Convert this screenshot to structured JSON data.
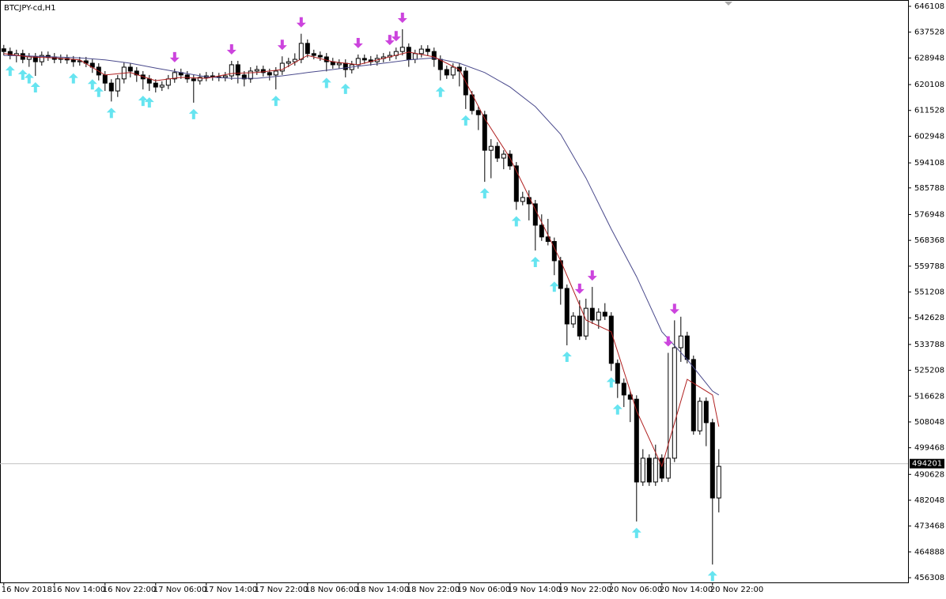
{
  "chart_data": {
    "type": "candlestick",
    "title": "BTCJPY-cd,H1",
    "xlim": [
      -0.6,
      142.9
    ],
    "ylim": [
      454746,
      648208
    ],
    "yticks": [
      646108,
      637528,
      628948,
      620108,
      611528,
      602948,
      594108,
      585788,
      576948,
      568368,
      559788,
      551208,
      542628,
      533788,
      525208,
      516628,
      508048,
      499468,
      490628,
      482048,
      473468,
      464888,
      456308
    ],
    "xticks": [
      {
        "value": 0,
        "label": "16 Nov 2018"
      },
      {
        "value": 8,
        "label": "16 Nov 14:00"
      },
      {
        "value": 16,
        "label": "16 Nov 22:00"
      },
      {
        "value": 24,
        "label": "17 Nov 06:00"
      },
      {
        "value": 32,
        "label": "17 Nov 14:00"
      },
      {
        "value": 40,
        "label": "17 Nov 22:00"
      },
      {
        "value": 48,
        "label": "18 Nov 06:00"
      },
      {
        "value": 56,
        "label": "18 Nov 14:00"
      },
      {
        "value": 64,
        "label": "18 Nov 22:00"
      },
      {
        "value": 72,
        "label": "19 Nov 06:00"
      },
      {
        "value": 80,
        "label": "19 Nov 14:00"
      },
      {
        "value": 88,
        "label": "19 Nov 22:00"
      },
      {
        "value": 96,
        "label": "20 Nov 06:00"
      },
      {
        "value": 104,
        "label": "20 Nov 14:00"
      },
      {
        "value": 112,
        "label": "20 Nov 22:00"
      }
    ],
    "bull_color": "#ffffff",
    "bear_color": "#000000",
    "candles": {
      "open": [
        632000,
        631100,
        629800,
        630400,
        628500,
        629300,
        627700,
        629800,
        629300,
        628500,
        628800,
        628300,
        627700,
        628000,
        627200,
        625900,
        623300,
        620600,
        618000,
        622000,
        625900,
        624600,
        623300,
        622000,
        620600,
        619300,
        619900,
        622000,
        624100,
        623300,
        622000,
        621400,
        622500,
        623000,
        622700,
        622500,
        623000,
        626700,
        623300,
        622000,
        624600,
        625100,
        624100,
        623300,
        624600,
        627200,
        627700,
        628500,
        633800,
        630400,
        629800,
        629300,
        627700,
        626700,
        627200,
        625100,
        626700,
        628800,
        628300,
        627700,
        628800,
        629300,
        629800,
        631100,
        632500,
        628500,
        630400,
        631900,
        631100,
        628500,
        625100,
        623300,
        625900,
        624600,
        616700,
        611500,
        610100,
        598300,
        599600,
        595700,
        597000,
        593100,
        581300,
        582600,
        580500,
        573400,
        569500,
        568000,
        561600,
        552400,
        540600,
        543200,
        536600,
        545800,
        541900,
        544500,
        543200,
        527500,
        520900,
        517000,
        515600,
        488100,
        496000,
        488100,
        496000,
        489400,
        496000,
        532700,
        536600,
        528800,
        505100,
        514900,
        507800,
        482800
      ],
      "high": [
        633300,
        632400,
        631700,
        631700,
        630600,
        630600,
        631100,
        631100,
        630600,
        630100,
        630100,
        629600,
        629300,
        629300,
        628500,
        627200,
        624600,
        621900,
        623300,
        627500,
        627200,
        625900,
        624600,
        623300,
        621900,
        621200,
        623300,
        625400,
        625400,
        624600,
        623300,
        623800,
        624300,
        624300,
        624000,
        624300,
        628000,
        628000,
        624600,
        625900,
        626400,
        626400,
        625400,
        625900,
        629500,
        629000,
        630500,
        637000,
        635100,
        631700,
        631100,
        630600,
        629000,
        628500,
        628500,
        628000,
        630100,
        630100,
        629600,
        630100,
        630600,
        631100,
        632400,
        638500,
        633800,
        631700,
        633200,
        633200,
        632400,
        629800,
        626400,
        627200,
        627200,
        625900,
        618000,
        612800,
        611400,
        602000,
        601000,
        598300,
        598300,
        594400,
        584500,
        585000,
        581800,
        577000,
        575500,
        569300,
        562900,
        553700,
        544500,
        548500,
        549000,
        552900,
        545800,
        547500,
        544500,
        528800,
        522500,
        518300,
        516900,
        499000,
        497300,
        500500,
        497300,
        531000,
        541800,
        543000,
        538000,
        530100,
        516200,
        516200,
        509100,
        499000
      ],
      "low": [
        629800,
        628500,
        627500,
        627200,
        626000,
        623000,
        626400,
        628000,
        627200,
        627200,
        627000,
        626000,
        626400,
        625900,
        624000,
        621500,
        618000,
        614500,
        616000,
        620500,
        622500,
        621000,
        618500,
        618000,
        617500,
        618000,
        618600,
        620700,
        622000,
        620700,
        614100,
        620100,
        621200,
        621400,
        621200,
        621200,
        621700,
        620500,
        619500,
        620700,
        623300,
        622800,
        621500,
        618500,
        623300,
        625900,
        626400,
        627200,
        629100,
        628500,
        628000,
        624500,
        625400,
        625400,
        622500,
        623800,
        625400,
        627000,
        626400,
        626400,
        627500,
        628000,
        628500,
        629800,
        626000,
        627200,
        629100,
        629800,
        626000,
        621500,
        622000,
        622000,
        619500,
        612000,
        610200,
        605000,
        587800,
        589000,
        594400,
        592000,
        591800,
        578500,
        580000,
        575000,
        565000,
        568200,
        566700,
        556800,
        547000,
        533500,
        539300,
        535300,
        535300,
        540600,
        539000,
        541900,
        525000,
        516000,
        513000,
        508000,
        475000,
        486800,
        486800,
        486800,
        488100,
        488100,
        494700,
        528000,
        527500,
        503800,
        503800,
        500000,
        460700,
        478000
      ],
      "close": [
        631100,
        629800,
        630400,
        628500,
        629300,
        627700,
        629800,
        629300,
        628500,
        628800,
        628300,
        627700,
        628000,
        627200,
        625900,
        623300,
        620600,
        618000,
        622000,
        625900,
        624600,
        623300,
        622000,
        620600,
        619300,
        619900,
        622000,
        624100,
        623300,
        622000,
        621400,
        622500,
        623000,
        622700,
        622500,
        623000,
        626700,
        623300,
        622000,
        624600,
        625100,
        624100,
        623300,
        624600,
        627200,
        627700,
        628500,
        633800,
        630400,
        629800,
        629300,
        627700,
        626700,
        627200,
        625100,
        626700,
        628800,
        628300,
        627700,
        628800,
        629300,
        629800,
        631100,
        632500,
        628500,
        630400,
        631900,
        631100,
        628500,
        625100,
        623300,
        625900,
        624600,
        616700,
        611500,
        610100,
        598300,
        599600,
        595700,
        597000,
        593100,
        581300,
        582600,
        580500,
        573400,
        569500,
        568000,
        561600,
        552400,
        540600,
        543200,
        536600,
        545800,
        541900,
        544500,
        543200,
        527500,
        520900,
        517000,
        515600,
        488100,
        496000,
        488100,
        496000,
        489400,
        496000,
        532700,
        536600,
        528800,
        505100,
        514900,
        507800,
        482800,
        493300
      ]
    },
    "moving_averages": [
      {
        "color": "#4a4a8c",
        "x": [
          0,
          4,
          8,
          12,
          16,
          20,
          24,
          28,
          32,
          36,
          40,
          44,
          48,
          52,
          56,
          60,
          64,
          68,
          72,
          76,
          80,
          84,
          88,
          92,
          96,
          100,
          104,
          108,
          112,
          113
        ],
        "values": [
          629800,
          629600,
          629300,
          629000,
          628300,
          627200,
          625600,
          624100,
          622700,
          622200,
          622200,
          623000,
          624100,
          625100,
          626200,
          627200,
          628300,
          629000,
          627200,
          624100,
          619300,
          612800,
          603600,
          589100,
          572100,
          556300,
          538000,
          528800,
          518300,
          517000
        ]
      },
      {
        "color": "#b02020",
        "x": [
          0,
          4,
          8,
          12,
          16,
          20,
          24,
          28,
          32,
          36,
          40,
          44,
          48,
          52,
          56,
          60,
          64,
          68,
          72,
          76,
          80,
          84,
          88,
          92,
          96,
          100,
          104,
          108,
          112,
          113
        ],
        "values": [
          630400,
          629300,
          629000,
          628300,
          623300,
          624100,
          621400,
          622500,
          622200,
          623800,
          624100,
          625100,
          629800,
          627700,
          626700,
          628800,
          630900,
          629300,
          625100,
          608800,
          595700,
          578600,
          561600,
          541900,
          538000,
          511700,
          493300,
          522200,
          517000,
          506500
        ]
      }
    ],
    "buy_signals": {
      "color": "#66e4f0",
      "values": [
        1,
        3,
        4,
        5,
        11,
        14,
        15,
        17,
        22,
        23,
        30,
        43,
        51,
        54,
        69,
        73,
        76,
        81,
        84,
        87,
        89,
        96,
        97,
        100,
        112
      ]
    },
    "sell_signals": {
      "color": "#cc44dd",
      "values": [
        27,
        36,
        44,
        47,
        56,
        61,
        62,
        63,
        91,
        93,
        105,
        106
      ]
    },
    "last_price": 494201
  }
}
